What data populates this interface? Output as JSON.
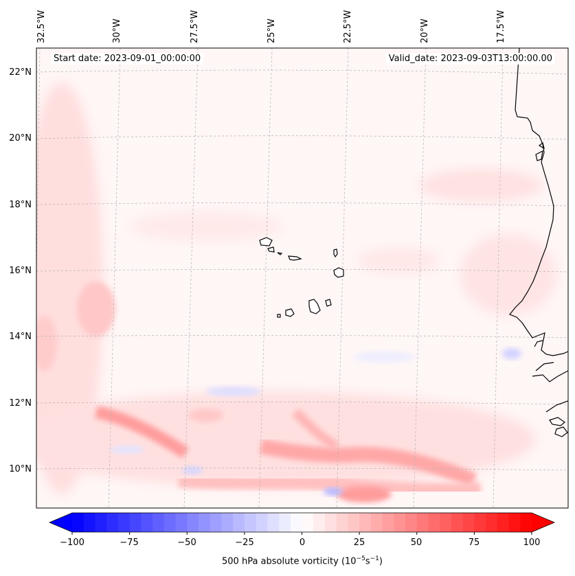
{
  "map": {
    "start_date": "Start date: 2023-09-01_00:00:00",
    "valid_date": "Valid_date: 2023-09-03T13:00:00.00",
    "lon_labels": [
      "32.5°W",
      "30°W",
      "27.5°W",
      "25°W",
      "22.5°W",
      "20°W",
      "17.5°W"
    ],
    "lat_labels": [
      "22°N",
      "20°N",
      "18°N",
      "16°N",
      "14°N",
      "12°N",
      "10°N"
    ],
    "coastline_color": "#000000",
    "gridline_color": "#b0b0b0"
  },
  "colorbar": {
    "ticks": [
      "−100",
      "−75",
      "−50",
      "−25",
      "0",
      "25",
      "50",
      "75",
      "100"
    ],
    "label_prefix": "500 hPa absolute vorticity (10",
    "label_exp1": "−5",
    "label_mid": "s",
    "label_exp2": "−1",
    "label_suffix": ")",
    "color_min": "#0000ff",
    "color_mid": "#ffffff",
    "color_max": "#ff0000"
  }
}
